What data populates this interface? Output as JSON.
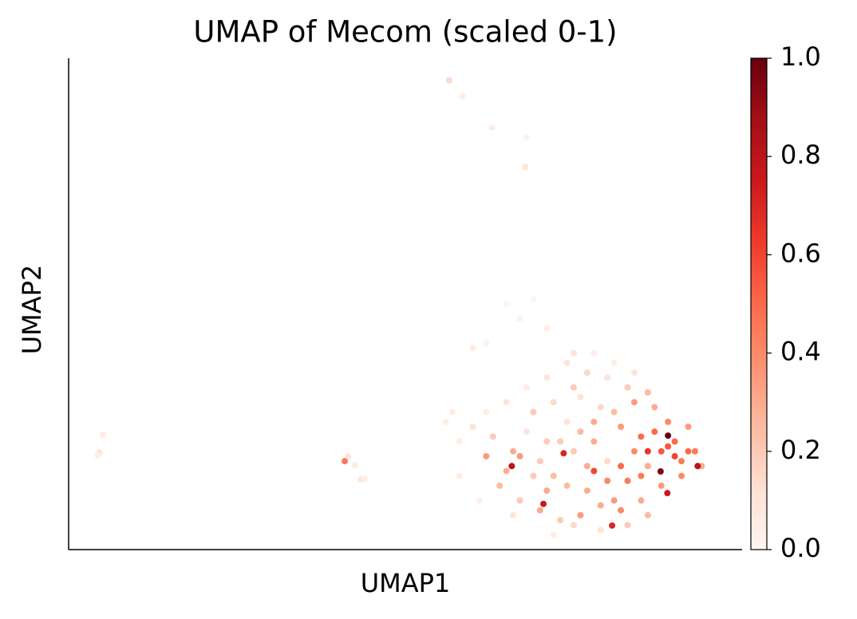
{
  "chart_data": {
    "type": "scatter",
    "title": "UMAP of Mecom (scaled 0-1)",
    "xlabel": "UMAP1",
    "ylabel": "UMAP2",
    "xlim": [
      0,
      100
    ],
    "ylim": [
      0,
      100
    ],
    "colormap": "Reds",
    "clim": [
      0,
      1
    ],
    "cticks": [
      {
        "value": 0,
        "label": "0.0"
      },
      0.2,
      0.4,
      0.6,
      0.8,
      {
        "value": 1,
        "label": "1.0"
      }
    ],
    "x": [
      75,
      78,
      80,
      82,
      84,
      86,
      72,
      74,
      77,
      81,
      83,
      85,
      88,
      90,
      91,
      89,
      87,
      79,
      76,
      73,
      70,
      68,
      66,
      64,
      67,
      70,
      73,
      76,
      79,
      82,
      85,
      88,
      91,
      93,
      94,
      92,
      86,
      83,
      80,
      77,
      74,
      71,
      68,
      65,
      62,
      60,
      58,
      62,
      65,
      63,
      69,
      72,
      75,
      78,
      81,
      84,
      87,
      89,
      90,
      92,
      85,
      82,
      80,
      77,
      74,
      71,
      69,
      67,
      71,
      76,
      79,
      75,
      83,
      86,
      72,
      66,
      61,
      58,
      56,
      57,
      62,
      67,
      69,
      65,
      71,
      75,
      78,
      81,
      84,
      60,
      89,
      87.9,
      80.7,
      65.8,
      93.4,
      88.9,
      73.5,
      70.5,
      78,
      86,
      56.5,
      58.5,
      62.9,
      68,
      67.8,
      5.1,
      4.6,
      4.3,
      41,
      41.5,
      42.5,
      43.4,
      44
    ],
    "y": [
      20,
      22,
      18,
      25,
      20,
      17,
      15,
      26,
      12,
      10,
      14,
      23,
      20,
      22,
      18,
      26,
      29,
      29,
      31,
      22,
      18,
      24,
      20,
      13,
      10,
      8,
      6,
      7,
      9,
      8,
      10,
      13,
      15,
      20,
      17,
      25,
      32,
      33,
      35,
      36,
      38,
      35,
      33,
      30,
      28,
      25,
      22,
      19,
      16,
      23,
      28,
      30,
      33,
      26,
      28,
      30,
      24,
      21,
      19,
      20,
      15,
      17,
      14,
      17,
      13,
      12,
      15,
      19,
      22,
      24,
      4,
      5,
      5,
      7,
      3,
      7,
      10,
      15,
      26,
      28,
      42,
      47,
      51,
      50,
      45,
      40,
      40,
      38,
      36,
      41,
      23.2,
      15.9,
      4.9,
      17,
      17,
      11.5,
      19.6,
      9.3,
      16,
      20,
      95.5,
      92.2,
      85.9,
      83.9,
      77.9,
      23.4,
      19.8,
      19.2,
      18,
      19,
      17.2,
      14.3,
      14.4
    ],
    "values": [
      0.2,
      0.3,
      0.15,
      0.35,
      0.4,
      0.3,
      0.25,
      0.1,
      0.3,
      0.35,
      0.45,
      0.5,
      0.55,
      0.5,
      0.45,
      0.4,
      0.3,
      0.15,
      0.1,
      0.2,
      0.2,
      0.1,
      0.3,
      0.25,
      0.2,
      0.3,
      0.2,
      0.35,
      0.3,
      0.4,
      0.3,
      0.35,
      0.4,
      0.45,
      0.3,
      0.35,
      0.25,
      0.2,
      0.1,
      0.15,
      0.1,
      0.1,
      0.05,
      0.1,
      0.05,
      0.1,
      0.05,
      0.35,
      0.3,
      0.2,
      0.2,
      0.15,
      0.2,
      0.3,
      0.25,
      0.35,
      0.5,
      0.55,
      0.6,
      0.5,
      0.45,
      0.5,
      0.4,
      0.3,
      0.25,
      0.3,
      0.2,
      0.35,
      0.2,
      0.25,
      0.1,
      0.15,
      0.2,
      0.25,
      0.05,
      0.1,
      0.05,
      0.05,
      0.05,
      0.05,
      0.02,
      0.02,
      0,
      0,
      0.05,
      0.1,
      0.05,
      0.05,
      0.1,
      0.05,
      1,
      0.95,
      0.7,
      0.8,
      0.8,
      0.75,
      0.7,
      0.75,
      0.6,
      0.65,
      0.15,
      0.05,
      0.05,
      0.02,
      0.1,
      0.05,
      0.1,
      0.05,
      0.45,
      0.1,
      0.05,
      0.1,
      0.05
    ]
  }
}
